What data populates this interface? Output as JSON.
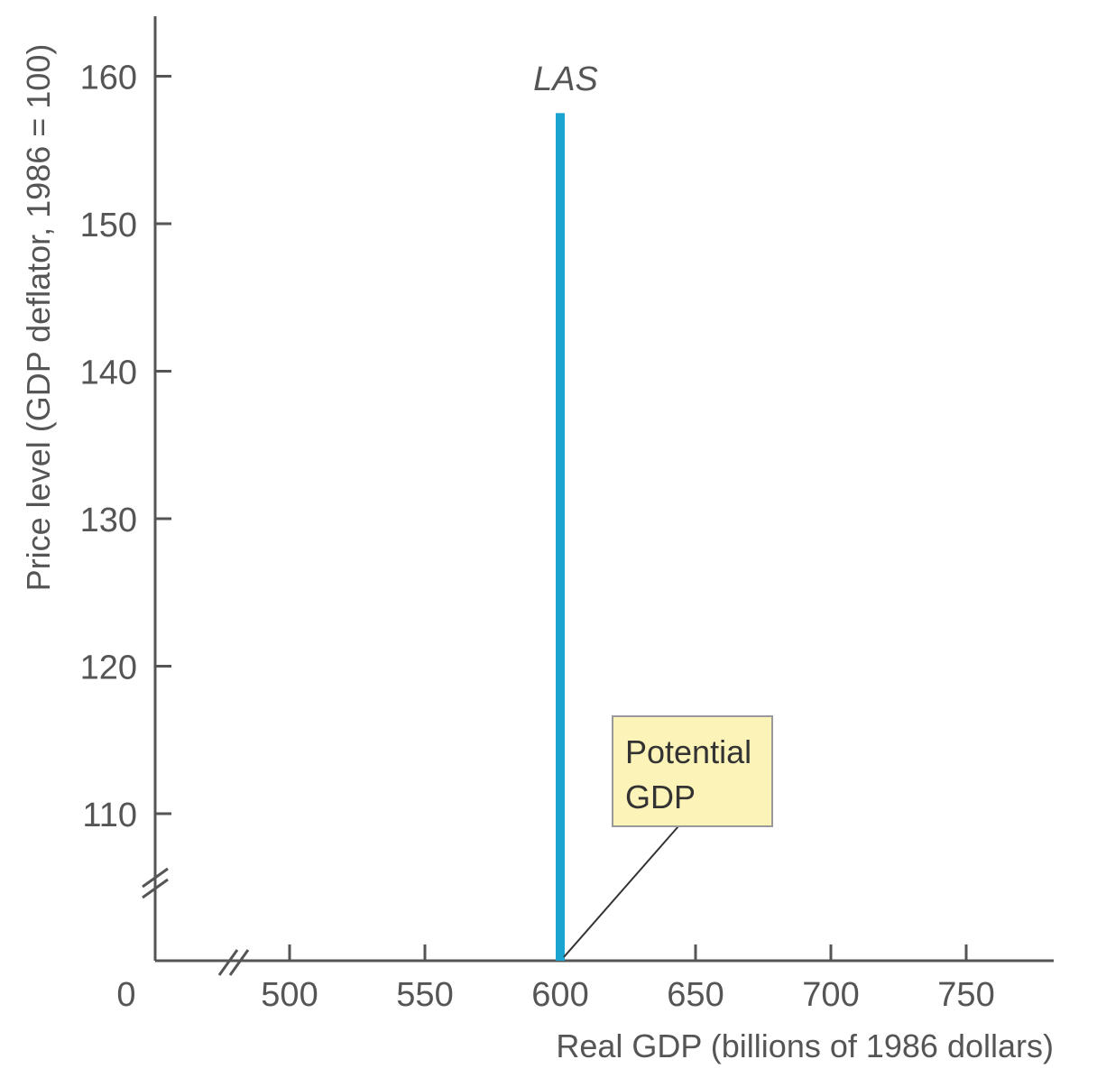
{
  "chart_data": {
    "type": "line",
    "xlabel": "Real GDP (billions of 1986 dollars)",
    "ylabel": "Price level (GDP deflator, 1986 = 100)",
    "origin_label": "0",
    "x_ticks": [
      "500",
      "550",
      "600",
      "650",
      "700",
      "750"
    ],
    "x_tick_values": [
      500,
      550,
      600,
      650,
      700,
      750
    ],
    "y_ticks": [
      "110",
      "120",
      "130",
      "140",
      "150",
      "160"
    ],
    "y_tick_values": [
      110,
      120,
      130,
      140,
      150,
      160
    ],
    "xlim": [
      450,
      785
    ],
    "ylim": [
      100.5,
      164
    ],
    "x_axis_break": true,
    "y_axis_break": true,
    "grid": false,
    "series": [
      {
        "name": "LAS",
        "color": "#1aa4cf",
        "x": [
          600,
          600
        ],
        "y": [
          100.5,
          157.5
        ]
      }
    ],
    "annotations": [
      {
        "line1": "Potential",
        "line2": "GDP",
        "points_to_x": 600,
        "points_to_y": 100.5,
        "fill": "#fcf3b8",
        "border": "#999999"
      }
    ]
  },
  "colors": {
    "axis": "#555555",
    "text": "#555555",
    "las_line": "#1aa4cf",
    "callout_fill": "#fcf3b8"
  }
}
